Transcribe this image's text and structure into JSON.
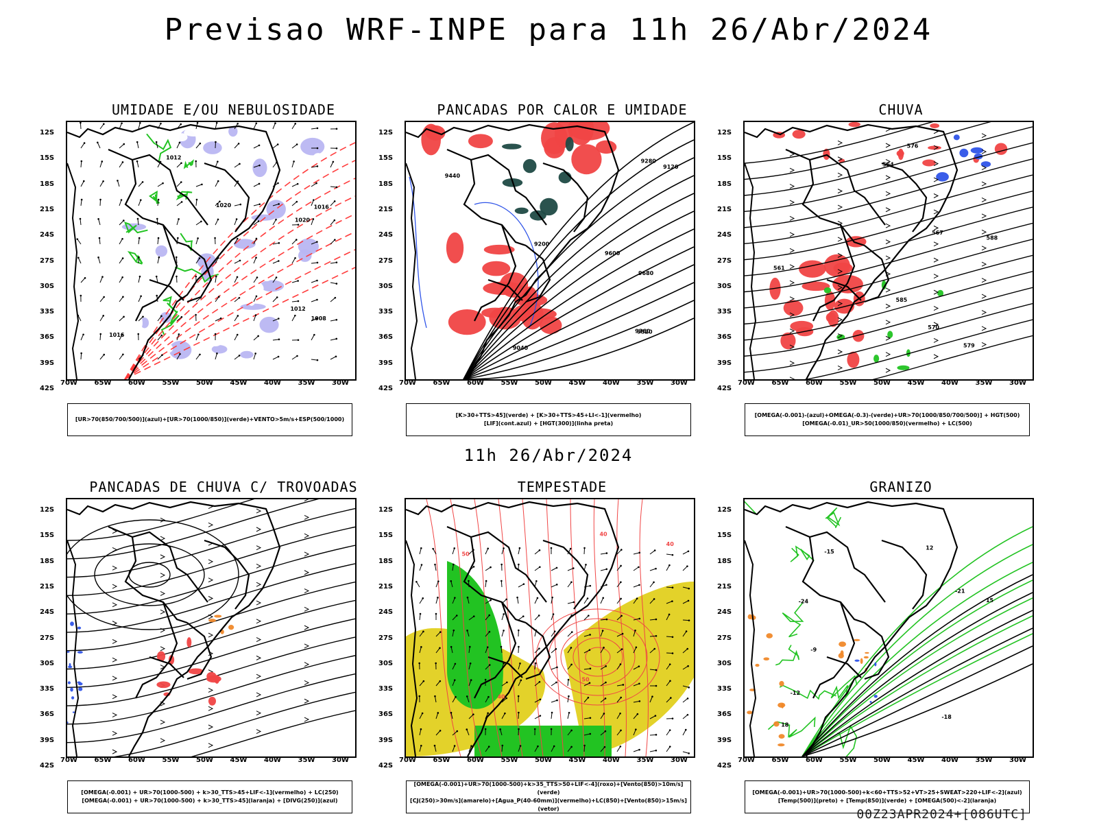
{
  "header": {
    "title": "Previsao WRF-INPE  para 11h 26/Abr/2024",
    "subtitle": "11h 26/Abr/2024",
    "footer": "00Z23APR2024+[086UTC]"
  },
  "axes": {
    "lat_labels": [
      "12S",
      "15S",
      "18S",
      "21S",
      "24S",
      "27S",
      "30S",
      "33S",
      "36S",
      "39S",
      "42S"
    ],
    "lon_labels": [
      "70W",
      "65W",
      "60W",
      "55W",
      "50W",
      "45W",
      "40W",
      "35W",
      "30W"
    ]
  },
  "panels": [
    {
      "title": "UMIDADE E/OU NEBULOSIDADE",
      "legend": [
        "[UR>70(850/700/500)](azul)+[UR>70(1000/850)](verde)+VENTO>5m/s+ESP(500/1000)"
      ],
      "contour_labels": [
        "1012",
        "1016",
        "1008",
        "1020",
        "1016",
        "1012",
        "1020"
      ],
      "fills": [
        "#b9b6f2",
        "#22c322"
      ],
      "lines": [
        "#000000",
        "#ff3b3b"
      ],
      "style": "vectors"
    },
    {
      "title": "PANCADAS POR CALOR E UMIDADE",
      "legend": [
        "[K>30+TTS>45](verde) + [K>30+TTS>45+LI<-1](vermelho)",
        "[LIF](cont.azul) + [HGT(300)](linha preta)"
      ],
      "contour_labels": [
        "9680",
        "9600",
        "9520",
        "9440",
        "9360",
        "9280",
        "9200",
        "9120",
        "9040"
      ],
      "fills": [
        "#f04545",
        "#1f4a45"
      ],
      "lines": [
        "#000000",
        "#2f54e8"
      ],
      "style": "contours"
    },
    {
      "title": "CHUVA",
      "legend": [
        "[OMEGA(-0.001)-(azul)+OMEGA(-0.3)-(verde)+UR>70(1000/850/700/500)] + HGT(500)",
        "[OMEGA(-0.01)_UR>50(1000/850)(vermelho) + LC(500)"
      ],
      "contour_labels": [
        "588",
        "585",
        "579",
        "576",
        "570",
        "564",
        "561",
        "567"
      ],
      "fills": [
        "#f04545",
        "#22c322",
        "#2f54e8"
      ],
      "lines": [
        "#000000"
      ],
      "style": "streamlines"
    },
    {
      "title": "PANCADAS DE CHUVA C/ TROVOADAS",
      "legend": [
        "[OMEGA(-0.001) + UR>70(1000-500) + k>30_TTS>45+LIF<-1](vermelho) + LC(250)",
        "[OMEGA(-0.001) + UR>70(1000-500) + k>30_TTS>45](laranja) + [DIVG(250)](azul)"
      ],
      "contour_labels": [],
      "fills": [
        "#f04545",
        "#f0892a",
        "#2f54e8"
      ],
      "lines": [
        "#000000"
      ],
      "style": "streamlines"
    },
    {
      "title": "TEMPESTADE",
      "legend": [
        "[OMEGA(-0.001)+UR>70(1000-500)+k>35_TTS>50+LIF<-4](roxo)+[Vento(850)>10m/s](verde)",
        "[CJ(250)>30m/s](amarelo)+[Agua_P(40-60mm)](vermelho)+LC(850)+[Vento(850)>15m/s](vetor)"
      ],
      "contour_labels": [
        "40",
        "50",
        "40",
        "50",
        "40"
      ],
      "fills": [
        "#e3d22a",
        "#22c322"
      ],
      "lines": [
        "#f04545"
      ],
      "style": "tempest"
    },
    {
      "title": "GRANIZO",
      "legend": [
        "[OMEGA(-0.001)+UR>70(1000-500)+k<60+TTS>52+VT>25+SWEAT>220+LIF<-2](azul)",
        "[Temp(500)](preto) + [Temp(850)](verde) + [OMEGA(500)<-2](laranja)"
      ],
      "contour_labels": [
        "18",
        "15",
        "12",
        "-9",
        "-12",
        "-15",
        "-18",
        "-21",
        "-24"
      ],
      "fills": [
        "#f0892a",
        "#2f54e8"
      ],
      "lines": [
        "#000000",
        "#22c322"
      ],
      "style": "granizo"
    }
  ]
}
